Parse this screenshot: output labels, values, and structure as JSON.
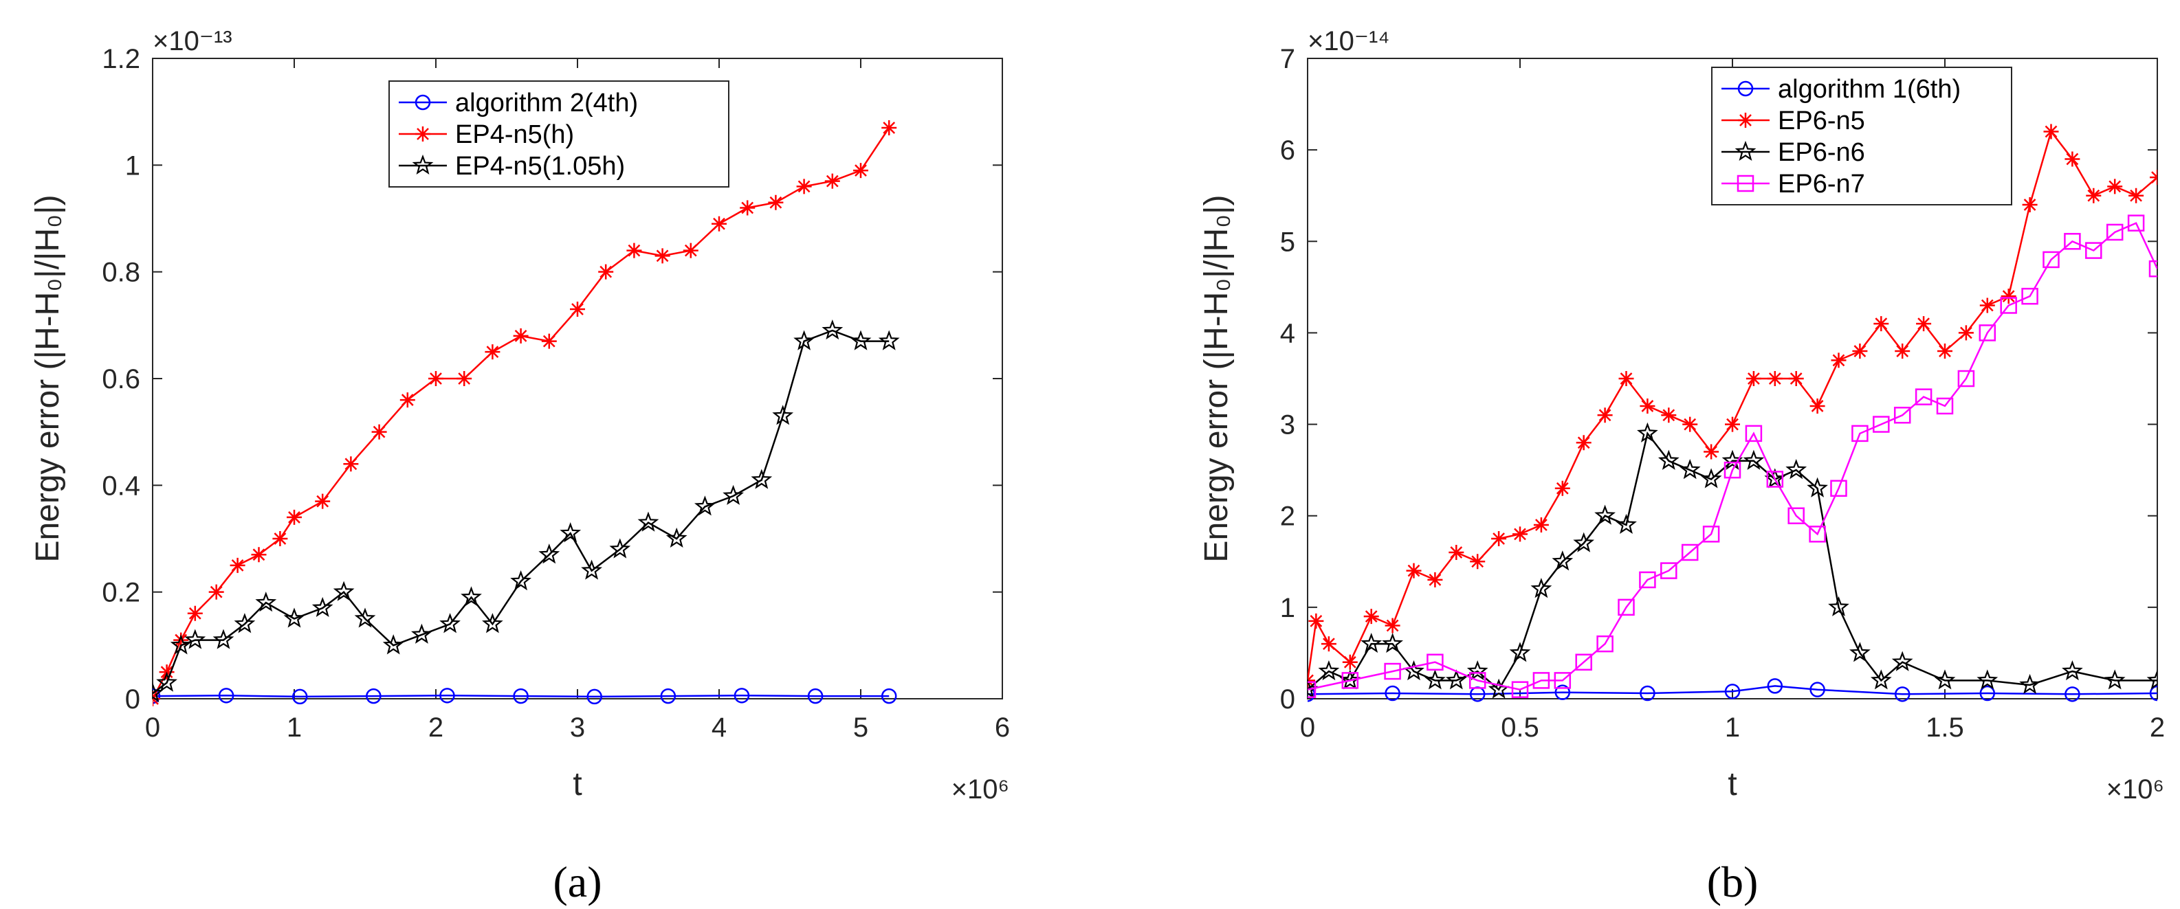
{
  "chart_data": [
    {
      "type": "line",
      "caption": "(a)",
      "xlabel": "t",
      "ylabel": "Energy error (|H-H₀|/|H₀|)",
      "x_multiplier": "×10⁶",
      "y_multiplier": "×10⁻¹³",
      "xlim": [
        0,
        6
      ],
      "ylim": [
        0,
        1.2
      ],
      "xticks": [
        "0",
        "1",
        "2",
        "3",
        "4",
        "5",
        "6"
      ],
      "yticks": [
        "0",
        "0.2",
        "0.4",
        "0.6",
        "0.8",
        "1",
        "1.2"
      ],
      "grid": false,
      "legend_position": "top-center",
      "series": [
        {
          "name": "algorithm 2(4th)",
          "color": "#0000ff",
          "marker": "circle",
          "x": [
            0,
            0.52,
            1.04,
            1.56,
            2.08,
            2.6,
            3.12,
            3.64,
            4.16,
            4.68,
            5.2
          ],
          "y": [
            0.005,
            0.006,
            0.004,
            0.005,
            0.006,
            0.005,
            0.004,
            0.005,
            0.006,
            0.005,
            0.005
          ]
        },
        {
          "name": "EP4-n5(h)",
          "color": "#ff0000",
          "marker": "asterisk",
          "x": [
            0,
            0.1,
            0.2,
            0.3,
            0.45,
            0.6,
            0.75,
            0.9,
            1.0,
            1.2,
            1.4,
            1.6,
            1.8,
            2.0,
            2.2,
            2.4,
            2.6,
            2.8,
            3.0,
            3.2,
            3.4,
            3.6,
            3.8,
            4.0,
            4.2,
            4.4,
            4.6,
            4.8,
            5.0,
            5.2
          ],
          "y": [
            0.0,
            0.05,
            0.11,
            0.16,
            0.2,
            0.25,
            0.27,
            0.3,
            0.34,
            0.37,
            0.44,
            0.5,
            0.56,
            0.6,
            0.6,
            0.65,
            0.68,
            0.67,
            0.73,
            0.8,
            0.84,
            0.83,
            0.84,
            0.89,
            0.92,
            0.93,
            0.96,
            0.97,
            0.99,
            1.07
          ]
        },
        {
          "name": "EP4-n5(1.05h)",
          "color": "#000000",
          "marker": "star",
          "x": [
            0,
            0.1,
            0.2,
            0.3,
            0.5,
            0.65,
            0.8,
            1.0,
            1.2,
            1.35,
            1.5,
            1.7,
            1.9,
            2.1,
            2.25,
            2.4,
            2.6,
            2.8,
            2.95,
            3.1,
            3.3,
            3.5,
            3.7,
            3.9,
            4.1,
            4.3,
            4.45,
            4.6,
            4.8,
            5.0,
            5.2
          ],
          "y": [
            0.01,
            0.03,
            0.1,
            0.11,
            0.11,
            0.14,
            0.18,
            0.15,
            0.17,
            0.2,
            0.15,
            0.1,
            0.12,
            0.14,
            0.19,
            0.14,
            0.22,
            0.27,
            0.31,
            0.24,
            0.28,
            0.33,
            0.3,
            0.36,
            0.38,
            0.41,
            0.53,
            0.67,
            0.69,
            0.67,
            0.67
          ]
        }
      ]
    },
    {
      "type": "line",
      "caption": "(b)",
      "xlabel": "t",
      "ylabel": "Energy error (|H-H₀|/|H₀|)",
      "x_multiplier": "×10⁶",
      "y_multiplier": "×10⁻¹⁴",
      "xlim": [
        0,
        2
      ],
      "ylim": [
        0,
        7
      ],
      "xticks": [
        "0",
        "0.5",
        "1",
        "1.5",
        "2"
      ],
      "yticks": [
        "0",
        "1",
        "2",
        "3",
        "4",
        "5",
        "6",
        "7"
      ],
      "grid": false,
      "legend_position": "top-right",
      "series": [
        {
          "name": "algorithm 1(6th)",
          "color": "#0000ff",
          "marker": "circle",
          "x": [
            0,
            0.2,
            0.4,
            0.6,
            0.8,
            1.0,
            1.1,
            1.2,
            1.4,
            1.6,
            1.8,
            2.0
          ],
          "y": [
            0.05,
            0.06,
            0.05,
            0.07,
            0.06,
            0.08,
            0.14,
            0.1,
            0.05,
            0.06,
            0.05,
            0.06
          ]
        },
        {
          "name": "EP6-n5",
          "color": "#ff0000",
          "marker": "asterisk",
          "x": [
            0,
            0.02,
            0.05,
            0.1,
            0.15,
            0.2,
            0.25,
            0.3,
            0.35,
            0.4,
            0.45,
            0.5,
            0.55,
            0.6,
            0.65,
            0.7,
            0.75,
            0.8,
            0.85,
            0.9,
            0.95,
            1.0,
            1.05,
            1.1,
            1.15,
            1.2,
            1.25,
            1.3,
            1.35,
            1.4,
            1.45,
            1.5,
            1.55,
            1.6,
            1.65,
            1.7,
            1.75,
            1.8,
            1.85,
            1.9,
            1.95,
            2.0
          ],
          "y": [
            0.2,
            0.85,
            0.6,
            0.4,
            0.9,
            0.8,
            1.4,
            1.3,
            1.6,
            1.5,
            1.75,
            1.8,
            1.9,
            2.3,
            2.8,
            3.1,
            3.5,
            3.2,
            3.1,
            3.0,
            2.7,
            3.0,
            3.5,
            3.5,
            3.5,
            3.2,
            3.7,
            3.8,
            4.1,
            3.8,
            4.1,
            3.8,
            4.0,
            4.3,
            4.4,
            5.4,
            6.2,
            5.9,
            5.5,
            5.6,
            5.5,
            5.7
          ]
        },
        {
          "name": "EP6-n6",
          "color": "#000000",
          "marker": "star",
          "x": [
            0,
            0.05,
            0.1,
            0.15,
            0.2,
            0.25,
            0.3,
            0.35,
            0.4,
            0.45,
            0.5,
            0.55,
            0.6,
            0.65,
            0.7,
            0.75,
            0.8,
            0.85,
            0.9,
            0.95,
            1.0,
            1.05,
            1.1,
            1.15,
            1.2,
            1.25,
            1.3,
            1.35,
            1.4,
            1.5,
            1.6,
            1.7,
            1.8,
            1.9,
            2.0
          ],
          "y": [
            0.1,
            0.3,
            0.2,
            0.6,
            0.6,
            0.3,
            0.2,
            0.2,
            0.3,
            0.1,
            0.5,
            1.2,
            1.5,
            1.7,
            2.0,
            1.9,
            2.9,
            2.6,
            2.5,
            2.4,
            2.6,
            2.6,
            2.4,
            2.5,
            2.3,
            1.0,
            0.5,
            0.2,
            0.4,
            0.2,
            0.2,
            0.15,
            0.3,
            0.2,
            0.2
          ]
        },
        {
          "name": "EP6-n7",
          "color": "#ff00ff",
          "marker": "square",
          "x": [
            0,
            0.1,
            0.2,
            0.3,
            0.4,
            0.5,
            0.55,
            0.6,
            0.65,
            0.7,
            0.75,
            0.8,
            0.85,
            0.9,
            0.95,
            1.0,
            1.05,
            1.1,
            1.15,
            1.2,
            1.25,
            1.3,
            1.35,
            1.4,
            1.45,
            1.5,
            1.55,
            1.6,
            1.65,
            1.7,
            1.75,
            1.8,
            1.85,
            1.9,
            1.95,
            2.0
          ],
          "y": [
            0.1,
            0.2,
            0.3,
            0.4,
            0.2,
            0.1,
            0.2,
            0.2,
            0.4,
            0.6,
            1.0,
            1.3,
            1.4,
            1.6,
            1.8,
            2.5,
            2.9,
            2.4,
            2.0,
            1.8,
            2.3,
            2.9,
            3.0,
            3.1,
            3.3,
            3.2,
            3.5,
            4.0,
            4.3,
            4.4,
            4.8,
            5.0,
            4.9,
            5.1,
            5.2,
            4.7
          ]
        }
      ]
    }
  ]
}
